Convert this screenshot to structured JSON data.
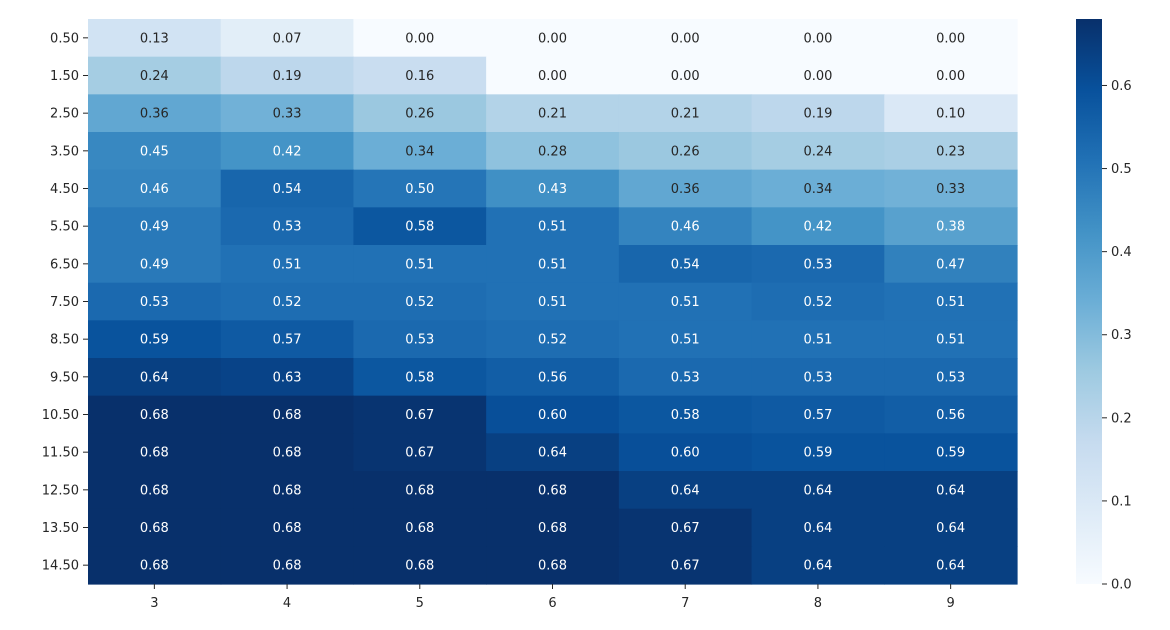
{
  "chart_data": {
    "type": "heatmap",
    "title": "",
    "xlabel": "",
    "ylabel": "",
    "colormap": "Blues",
    "x_categories": [
      "3",
      "4",
      "5",
      "6",
      "7",
      "8",
      "9"
    ],
    "y_categories": [
      "0.50",
      "1.50",
      "2.50",
      "3.50",
      "4.50",
      "5.50",
      "6.50",
      "7.50",
      "8.50",
      "9.50",
      "10.50",
      "11.50",
      "12.50",
      "13.50",
      "14.50"
    ],
    "values": [
      [
        0.13,
        0.07,
        0.0,
        0.0,
        0.0,
        0.0,
        0.0
      ],
      [
        0.24,
        0.19,
        0.16,
        0.0,
        0.0,
        0.0,
        0.0
      ],
      [
        0.36,
        0.33,
        0.26,
        0.21,
        0.21,
        0.19,
        0.1
      ],
      [
        0.45,
        0.42,
        0.34,
        0.28,
        0.26,
        0.24,
        0.23
      ],
      [
        0.46,
        0.54,
        0.5,
        0.43,
        0.36,
        0.34,
        0.33
      ],
      [
        0.49,
        0.53,
        0.58,
        0.51,
        0.46,
        0.42,
        0.38
      ],
      [
        0.49,
        0.51,
        0.51,
        0.51,
        0.54,
        0.53,
        0.47
      ],
      [
        0.53,
        0.52,
        0.52,
        0.51,
        0.51,
        0.52,
        0.51
      ],
      [
        0.59,
        0.57,
        0.53,
        0.52,
        0.51,
        0.51,
        0.51
      ],
      [
        0.64,
        0.63,
        0.58,
        0.56,
        0.53,
        0.53,
        0.53
      ],
      [
        0.68,
        0.68,
        0.67,
        0.6,
        0.58,
        0.57,
        0.56
      ],
      [
        0.68,
        0.68,
        0.67,
        0.64,
        0.6,
        0.59,
        0.59
      ],
      [
        0.68,
        0.68,
        0.68,
        0.68,
        0.64,
        0.64,
        0.64
      ],
      [
        0.68,
        0.68,
        0.68,
        0.68,
        0.67,
        0.64,
        0.64
      ],
      [
        0.68,
        0.68,
        0.68,
        0.68,
        0.67,
        0.64,
        0.64
      ]
    ],
    "value_format_decimals": 2,
    "vmin": 0.0,
    "vmax": 0.68,
    "colorbar": {
      "ticks": [
        0.0,
        0.1,
        0.2,
        0.3,
        0.4,
        0.5,
        0.6
      ],
      "tick_labels": [
        "0.0",
        "0.1",
        "0.2",
        "0.3",
        "0.4",
        "0.5",
        "0.6"
      ],
      "position": "right"
    }
  }
}
